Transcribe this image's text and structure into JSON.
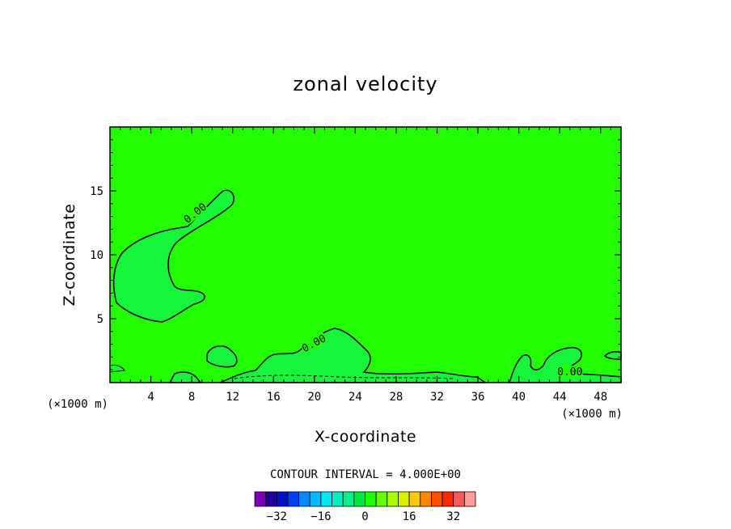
{
  "chart_data": {
    "type": "contour",
    "title": "zonal velocity",
    "xlabel": "X-coordinate",
    "ylabel": "Z-coordinate",
    "x_unit_left": "(×1000 m)",
    "x_unit_right": "(×1000 m)",
    "xlim": [
      0,
      50
    ],
    "ylim": [
      0,
      20
    ],
    "x_ticks": [
      4,
      8,
      12,
      16,
      20,
      24,
      28,
      32,
      36,
      40,
      44,
      48
    ],
    "y_ticks": [
      5,
      10,
      15
    ],
    "field_color": "#22ff00",
    "contour_labels": [
      {
        "text": "0.00",
        "x": 8.4,
        "y": 13.2,
        "angle": -38
      },
      {
        "text": "0.00",
        "x": 20.0,
        "y": 3.0,
        "angle": -28
      },
      {
        "text": "0.00",
        "x": 45.0,
        "y": 0.75,
        "angle": 0
      }
    ],
    "contour_interval_text": "CONTOUR INTERVAL = 4.000E+00",
    "colorbar": {
      "colors": [
        "#7a00b8",
        "#2200a0",
        "#0010c8",
        "#0040f0",
        "#0088ff",
        "#00b8ff",
        "#00e8f0",
        "#00f0c0",
        "#00f088",
        "#00e840",
        "#20ff00",
        "#66ff00",
        "#a8ff00",
        "#d8f000",
        "#ffc800",
        "#ff8800",
        "#ff5000",
        "#ff2800",
        "#ff5a5a",
        "#ff9c9c"
      ],
      "tick_values": [
        -32,
        -16,
        0,
        16,
        32
      ],
      "tick_labels": [
        "−32",
        "−16",
        "0",
        "16",
        "32"
      ],
      "min": -40,
      "max": 40
    }
  }
}
